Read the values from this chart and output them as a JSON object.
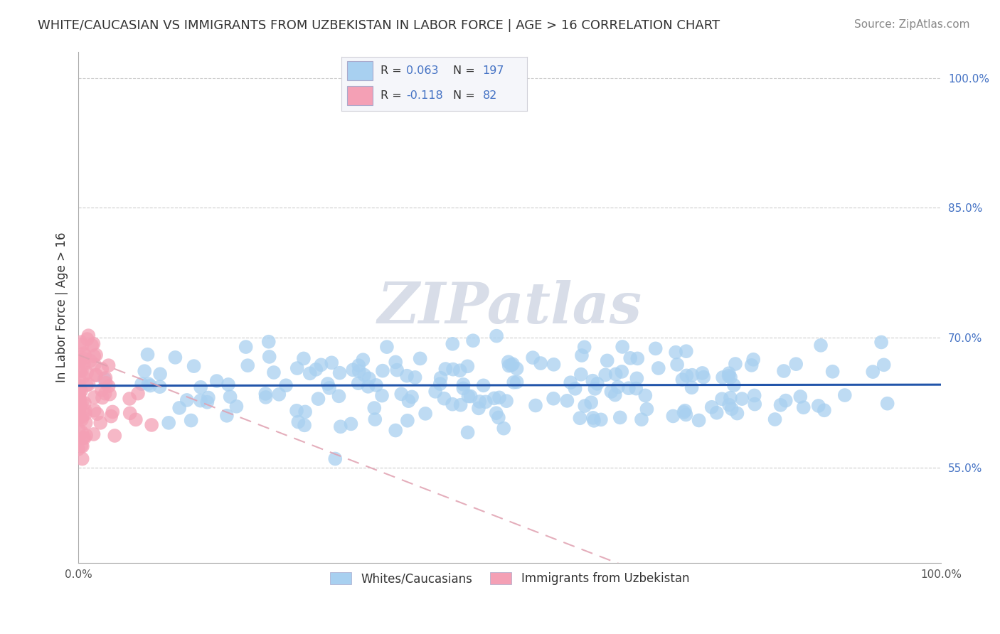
{
  "title": "WHITE/CAUCASIAN VS IMMIGRANTS FROM UZBEKISTAN IN LABOR FORCE | AGE > 16 CORRELATION CHART",
  "source": "Source: ZipAtlas.com",
  "ylabel": "In Labor Force | Age > 16",
  "yticks": [
    "55.0%",
    "70.0%",
    "85.0%",
    "100.0%"
  ],
  "ytick_vals": [
    0.55,
    0.7,
    0.85,
    1.0
  ],
  "xlim": [
    0.0,
    1.0
  ],
  "ylim": [
    0.44,
    1.03
  ],
  "scatter_blue_color": "#a8d0f0",
  "scatter_pink_color": "#f4a0b5",
  "line_blue_color": "#2255aa",
  "line_pink_color": "#e0a0b0",
  "watermark_text": "ZIPatlas",
  "watermark_color": "#d8dde8",
  "background_color": "#ffffff",
  "r1": 0.063,
  "n1": 197,
  "r2": -0.118,
  "n2": 82,
  "blue_line_y": 0.645,
  "pink_line_start_y": 0.68,
  "pink_line_end_y": 0.295
}
